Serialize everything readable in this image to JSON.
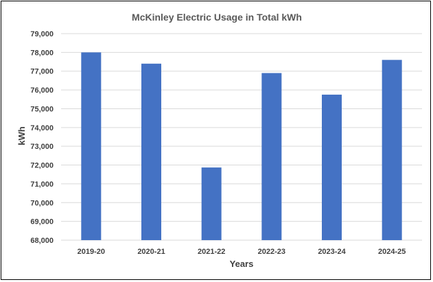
{
  "chart_data": {
    "type": "bar",
    "title": "McKinley Electric Usage in Total kWh",
    "xlabel": "Years",
    "ylabel": "kWh",
    "categories": [
      "2019-20",
      "2020-21",
      "2021-22",
      "2022-23",
      "2023-24",
      "2024-25"
    ],
    "values": [
      78000,
      77400,
      71870,
      76900,
      75750,
      77600
    ],
    "ylim": [
      68000,
      79000
    ],
    "yticks": [
      "68,000",
      "69,000",
      "70,000",
      "71,000",
      "72,000",
      "73,000",
      "74,000",
      "75,000",
      "76,000",
      "77,000",
      "78,000",
      "79,000"
    ],
    "grid": true,
    "legend": "none",
    "bar_color": "#4472C4",
    "grid_color": "#D9D9D9"
  }
}
